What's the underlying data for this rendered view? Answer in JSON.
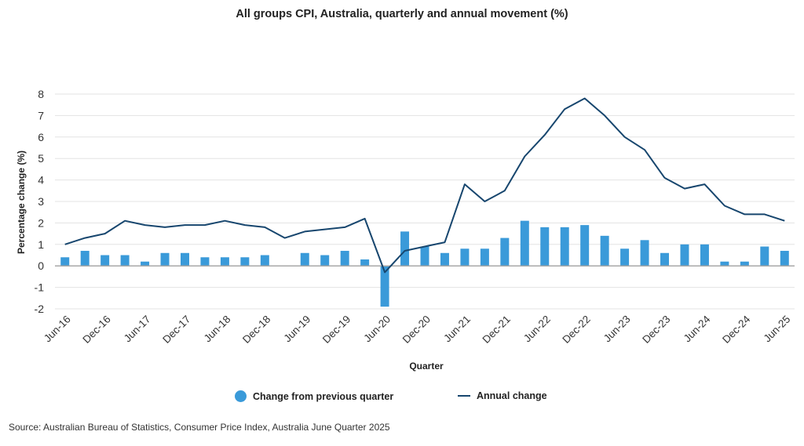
{
  "title": "All groups CPI, Australia, quarterly and annual movement (%)",
  "source": "Source: Australian Bureau of Statistics, Consumer Price Index, Australia June Quarter 2025",
  "legend": {
    "quarterly": "Change from previous quarter",
    "annual": "Annual change"
  },
  "chart_data": {
    "type": "bar",
    "title": "All groups CPI, Australia, quarterly and annual movement (%)",
    "xlabel": "Quarter",
    "ylabel": "Percentage change (%)",
    "ylim": [
      -2,
      8
    ],
    "yticks": [
      "8",
      "7",
      "6",
      "5",
      "4",
      "3",
      "2",
      "1",
      "0",
      "-1",
      "-2"
    ],
    "ytick_values": [
      8,
      7,
      6,
      5,
      4,
      3,
      2,
      1,
      0,
      -1,
      -2
    ],
    "grid": true,
    "legend_position": "bottom",
    "categories": [
      "Jun-16",
      "Sep-16",
      "Dec-16",
      "Mar-17",
      "Jun-17",
      "Sep-17",
      "Dec-17",
      "Mar-18",
      "Jun-18",
      "Sep-18",
      "Dec-18",
      "Mar-19",
      "Jun-19",
      "Sep-19",
      "Dec-19",
      "Mar-20",
      "Jun-20",
      "Sep-20",
      "Dec-20",
      "Mar-21",
      "Jun-21",
      "Sep-21",
      "Dec-21",
      "Mar-22",
      "Jun-22",
      "Sep-22",
      "Dec-22",
      "Mar-23",
      "Jun-23",
      "Sep-23",
      "Dec-23",
      "Mar-24",
      "Jun-24",
      "Sep-24",
      "Dec-24",
      "Mar-25",
      "Jun-25"
    ],
    "tick_labels": [
      "Jun-16",
      "Dec-16",
      "Jun-17",
      "Dec-17",
      "Jun-18",
      "Dec-18",
      "Jun-19",
      "Dec-19",
      "Jun-20",
      "Dec-20",
      "Jun-21",
      "Dec-21",
      "Jun-22",
      "Dec-22",
      "Jun-23",
      "Dec-23",
      "Jun-24",
      "Dec-24",
      "Jun-25"
    ],
    "series": [
      {
        "name": "Change from previous quarter",
        "type": "bar",
        "color": "#3a9ad9",
        "values": [
          0.4,
          0.7,
          0.5,
          0.5,
          0.2,
          0.6,
          0.6,
          0.4,
          0.4,
          0.4,
          0.5,
          0.0,
          0.6,
          0.5,
          0.7,
          0.3,
          -1.9,
          1.6,
          0.9,
          0.6,
          0.8,
          0.8,
          1.3,
          2.1,
          1.8,
          1.8,
          1.9,
          1.4,
          0.8,
          1.2,
          0.6,
          1.0,
          1.0,
          0.2,
          0.2,
          0.9,
          0.7
        ]
      },
      {
        "name": "Annual change",
        "type": "line",
        "color": "#17466e",
        "values": [
          1.0,
          1.3,
          1.5,
          2.1,
          1.9,
          1.8,
          1.9,
          1.9,
          2.1,
          1.9,
          1.8,
          1.3,
          1.6,
          1.7,
          1.8,
          2.2,
          -0.3,
          0.7,
          0.9,
          1.1,
          3.8,
          3.0,
          3.5,
          5.1,
          6.1,
          7.3,
          7.8,
          7.0,
          6.0,
          5.4,
          4.1,
          3.6,
          3.8,
          2.8,
          2.4,
          2.4,
          2.1
        ]
      }
    ]
  }
}
